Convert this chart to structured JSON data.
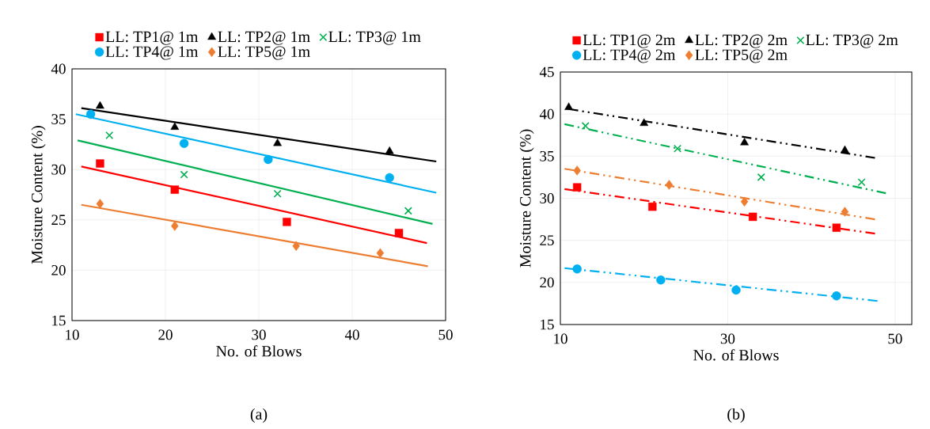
{
  "chart_data": [
    {
      "type": "scatter",
      "xlabel": "No. of Blows",
      "ylabel": "Moisture Content (%)",
      "xlim": [
        10,
        50
      ],
      "ylim": [
        15,
        40
      ],
      "xticks": [
        10,
        20,
        30,
        40,
        50
      ],
      "yticks": [
        15,
        20,
        25,
        30,
        35,
        40
      ],
      "grid": true,
      "legend": "top",
      "annotations": [
        "(a)"
      ],
      "series": [
        {
          "name": "LL: TP1@ 1m",
          "color": "#ff0000",
          "marker": "square",
          "x": [
            13,
            21,
            33,
            45
          ],
          "values": [
            30.6,
            28.0,
            24.8,
            23.7
          ]
        },
        {
          "name": "LL: TP2@ 1m",
          "color": "#000000",
          "marker": "triangle",
          "x": [
            13,
            21,
            32,
            44
          ],
          "values": [
            36.3,
            34.2,
            32.6,
            31.8
          ]
        },
        {
          "name": "LL: TP3@ 1m",
          "color": "#00b050",
          "marker": "cross",
          "x": [
            14,
            22,
            32,
            46
          ],
          "values": [
            33.4,
            29.5,
            27.6,
            25.9
          ]
        },
        {
          "name": "LL: TP4@ 1m",
          "color": "#00b0f0",
          "marker": "circle",
          "x": [
            12,
            22,
            31,
            44
          ],
          "values": [
            35.5,
            32.6,
            31.0,
            29.2
          ]
        },
        {
          "name": "LL: TP5@ 1m",
          "color": "#ed7d31",
          "marker": "diamond",
          "x": [
            13,
            21,
            34,
            43
          ],
          "values": [
            26.6,
            24.4,
            22.4,
            21.7
          ]
        },
        {
          "type": "line",
          "color": "#ff0000",
          "line_style": "solid",
          "x": [
            11,
            48
          ],
          "values": [
            30.3,
            22.7
          ]
        },
        {
          "type": "line",
          "color": "#000000",
          "line_style": "solid",
          "x": [
            11,
            49
          ],
          "values": [
            36.1,
            30.8
          ]
        },
        {
          "type": "line",
          "color": "#00b050",
          "line_style": "solid",
          "x": [
            10.6,
            48.6
          ],
          "values": [
            32.9,
            24.6
          ]
        },
        {
          "type": "line",
          "color": "#00b0f0",
          "line_style": "solid",
          "x": [
            10.4,
            49
          ],
          "values": [
            35.5,
            27.7
          ]
        },
        {
          "type": "line",
          "color": "#ed7d31",
          "line_style": "solid",
          "x": [
            11,
            48.1
          ],
          "values": [
            26.5,
            20.4
          ]
        }
      ]
    },
    {
      "type": "scatter",
      "xlabel": "No. of Blows",
      "ylabel": "Moisture Content (%)",
      "xlim": [
        10,
        52
      ],
      "ylim": [
        15,
        45
      ],
      "xticks": [
        10,
        30,
        50
      ],
      "yticks": [
        15,
        20,
        25,
        30,
        35,
        40,
        45
      ],
      "grid": true,
      "legend": "top",
      "annotations": [
        "(b)"
      ],
      "series": [
        {
          "name": "LL: TP1@ 2m",
          "color": "#ff0000",
          "marker": "square",
          "x": [
            12,
            21,
            33,
            43
          ],
          "values": [
            31.3,
            29.0,
            27.8,
            26.5
          ]
        },
        {
          "name": "LL: TP2@ 2m",
          "color": "#000000",
          "marker": "triangle",
          "x": [
            11,
            20,
            32,
            44
          ],
          "values": [
            40.8,
            38.9,
            36.6,
            35.7
          ]
        },
        {
          "name": "LL: TP3@ 2m",
          "color": "#00b050",
          "marker": "cross",
          "x": [
            13,
            24,
            34,
            46
          ],
          "values": [
            38.6,
            35.9,
            32.5,
            31.9
          ]
        },
        {
          "name": "LL: TP4@ 2m",
          "color": "#00b0f0",
          "marker": "circle",
          "x": [
            12,
            22,
            31,
            43
          ],
          "values": [
            21.6,
            20.3,
            19.1,
            18.4
          ]
        },
        {
          "name": "LL: TP5@ 2m",
          "color": "#ed7d31",
          "marker": "diamond",
          "x": [
            12,
            23,
            32,
            44
          ],
          "values": [
            33.3,
            31.6,
            29.6,
            28.4
          ]
        },
        {
          "type": "line",
          "color": "#ff0000",
          "line_style": "dashed",
          "x": [
            10.5,
            47.6
          ],
          "values": [
            31.1,
            25.8
          ]
        },
        {
          "type": "line",
          "color": "#000000",
          "line_style": "dashed",
          "x": [
            11,
            47.6
          ],
          "values": [
            40.6,
            34.8
          ]
        },
        {
          "type": "line",
          "color": "#00b050",
          "line_style": "dashed",
          "x": [
            10.5,
            48.9
          ],
          "values": [
            38.8,
            30.6
          ]
        },
        {
          "type": "line",
          "color": "#00b0f0",
          "line_style": "dashed",
          "x": [
            10.5,
            47.9
          ],
          "values": [
            21.7,
            17.8
          ]
        },
        {
          "type": "line",
          "color": "#ed7d31",
          "line_style": "dashed",
          "x": [
            10.5,
            47.6
          ],
          "values": [
            33.5,
            27.5
          ]
        }
      ]
    }
  ]
}
